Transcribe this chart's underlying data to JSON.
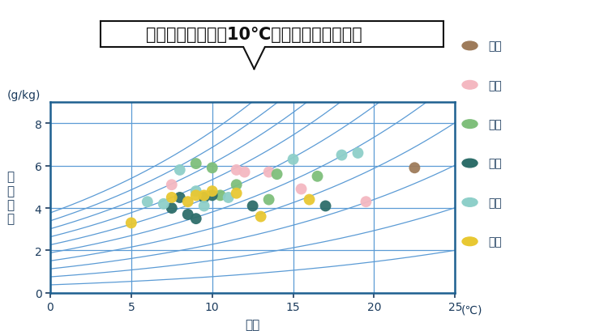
{
  "title": "冬の寝室の温度は10℃前後が多いようです",
  "xlabel": "温度",
  "ylabel_chars": [
    "絶",
    "対",
    "湿",
    "度"
  ],
  "x_unit": "(℃)",
  "y_unit": "(g/kg)",
  "xlim": [
    0,
    25
  ],
  "ylim": [
    0,
    9
  ],
  "xticks": [
    0,
    5,
    10,
    15,
    20,
    25
  ],
  "yticks": [
    0,
    2,
    4,
    6,
    8
  ],
  "bg_color": "#ffffff",
  "axis_color": "#1e6090",
  "grid_color": "#5b9bd5",
  "text_color": "#1a3a5c",
  "cities": [
    "札幌",
    "盛岡",
    "仙台",
    "松本",
    "金沢",
    "大阪"
  ],
  "city_colors": [
    "#9e7b5a",
    "#f4b8c1",
    "#7fbf7b",
    "#2e6e6a",
    "#8ecfc9",
    "#e8c832"
  ],
  "data": {
    "札幌": [
      [
        22.5,
        5.9
      ]
    ],
    "盛岡": [
      [
        7.5,
        5.1
      ],
      [
        11.5,
        5.8
      ],
      [
        12.0,
        5.7
      ],
      [
        13.5,
        5.7
      ],
      [
        15.5,
        4.9
      ],
      [
        19.5,
        4.3
      ]
    ],
    "仙台": [
      [
        9.0,
        6.1
      ],
      [
        10.0,
        5.9
      ],
      [
        10.5,
        4.6
      ],
      [
        11.5,
        5.1
      ],
      [
        13.5,
        4.4
      ],
      [
        14.0,
        5.6
      ],
      [
        16.5,
        5.5
      ]
    ],
    "松本": [
      [
        7.5,
        4.0
      ],
      [
        8.0,
        4.5
      ],
      [
        8.5,
        3.7
      ],
      [
        9.0,
        3.5
      ],
      [
        9.5,
        4.5
      ],
      [
        10.0,
        4.6
      ],
      [
        12.5,
        4.1
      ],
      [
        17.0,
        4.1
      ]
    ],
    "金沢": [
      [
        6.0,
        4.3
      ],
      [
        7.0,
        4.2
      ],
      [
        8.0,
        5.8
      ],
      [
        9.0,
        4.8
      ],
      [
        9.5,
        4.1
      ],
      [
        11.0,
        4.5
      ],
      [
        15.0,
        6.3
      ],
      [
        18.0,
        6.5
      ],
      [
        19.0,
        6.6
      ]
    ],
    "大阪": [
      [
        5.0,
        3.3
      ],
      [
        7.5,
        4.5
      ],
      [
        8.5,
        4.3
      ],
      [
        9.0,
        4.6
      ],
      [
        9.5,
        4.6
      ],
      [
        10.0,
        4.8
      ],
      [
        11.5,
        4.7
      ],
      [
        13.0,
        3.6
      ],
      [
        16.0,
        4.4
      ]
    ]
  },
  "rh_levels": [
    10,
    20,
    30,
    40,
    50,
    60,
    70,
    80,
    90,
    100
  ],
  "title_fontsize": 15,
  "label_fontsize": 10,
  "tick_fontsize": 10,
  "legend_fontsize": 10
}
